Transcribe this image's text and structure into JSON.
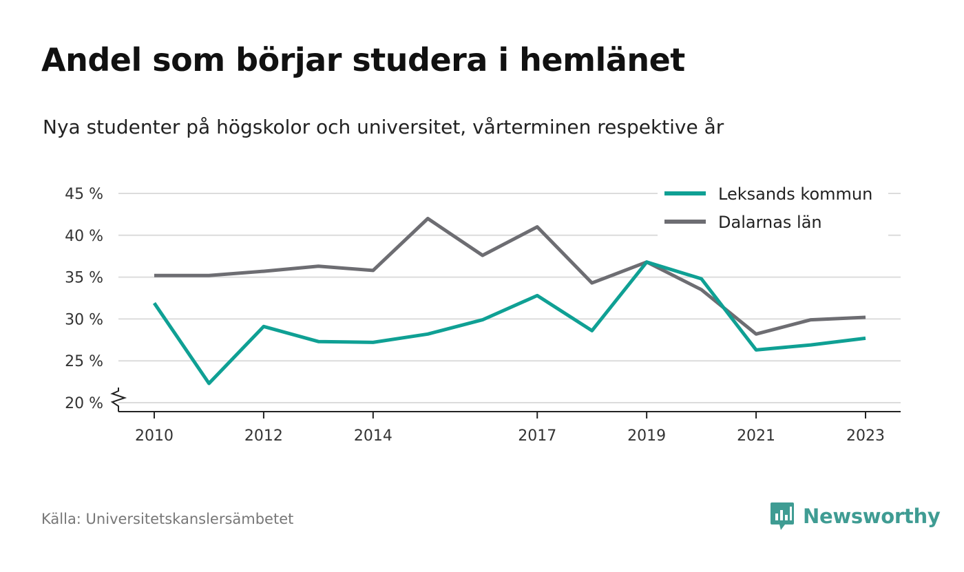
{
  "title": "Andel som börjar studera i hemlänet",
  "subtitle": "Nya studenter på högskolor och universitet, vårterminen respektive år",
  "source": "Källa: Universitetskanslersämbetet",
  "brand": {
    "name": "Newsworthy",
    "icon": "newsworthy-logo-icon",
    "color": "#3f9c93"
  },
  "colors": {
    "teal": "#0fa094",
    "gray": "#6d6d72",
    "grid": "#dcdcdc",
    "axis": "#222222"
  },
  "chart_data": {
    "type": "line",
    "title": "Andel som börjar studera i hemlänet",
    "subtitle": "Nya studenter på högskolor och universitet, vårterminen respektive år",
    "x": [
      2010,
      2011,
      2012,
      2013,
      2014,
      2015,
      2016,
      2017,
      2018,
      2019,
      2020,
      2021,
      2022,
      2023
    ],
    "x_ticks": [
      2010,
      2012,
      2014,
      2017,
      2019,
      2021,
      2023
    ],
    "x_tick_labels": [
      "2010",
      "2012",
      "2014",
      "2017",
      "2019",
      "2021",
      "2023"
    ],
    "y_ticks": [
      20,
      25,
      30,
      35,
      40,
      45
    ],
    "y_tick_labels": [
      "20 %",
      "25 %",
      "30 %",
      "35 %",
      "40 %",
      "45 %"
    ],
    "ylim": [
      20,
      45
    ],
    "y_axis_break": true,
    "grid": true,
    "legend_position": "top-right",
    "series": [
      {
        "name": "Leksands kommun",
        "color": "#0fa094",
        "values": [
          31.9,
          22.3,
          29.1,
          27.3,
          27.2,
          28.2,
          29.9,
          32.8,
          28.6,
          36.8,
          34.8,
          26.3,
          26.9,
          27.7
        ]
      },
      {
        "name": "Dalarnas län",
        "color": "#6d6d72",
        "values": [
          35.2,
          35.2,
          35.7,
          36.3,
          35.8,
          42.0,
          37.6,
          41.0,
          34.3,
          36.8,
          33.5,
          28.2,
          29.9,
          30.2
        ]
      }
    ]
  }
}
